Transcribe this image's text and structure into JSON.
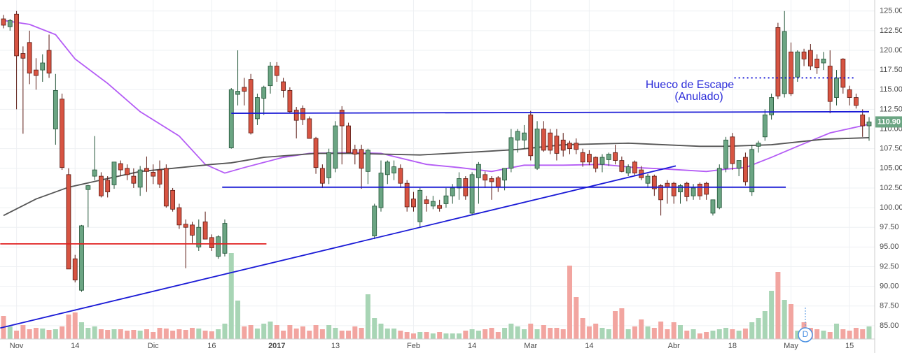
{
  "chart_data": {
    "type": "candlestick",
    "categories": [
      null,
      null,
      "Nov",
      null,
      null,
      null,
      null,
      null,
      null,
      null,
      null,
      "14",
      null,
      null,
      null,
      null,
      null,
      null,
      null,
      null,
      null,
      null,
      null,
      "Dic",
      null,
      null,
      null,
      null,
      null,
      null,
      null,
      null,
      "16",
      null,
      null,
      null,
      null,
      null,
      null,
      null,
      null,
      null,
      "2017",
      null,
      null,
      null,
      null,
      null,
      null,
      null,
      null,
      "13",
      null,
      null,
      null,
      null,
      null,
      null,
      null,
      null,
      null,
      null,
      null,
      "Feb",
      null,
      null,
      null,
      null,
      null,
      null,
      null,
      null,
      "14",
      null,
      null,
      null,
      null,
      null,
      null,
      null,
      null,
      "Mar",
      null,
      null,
      null,
      null,
      null,
      null,
      null,
      null,
      "14",
      null,
      null,
      null,
      null,
      null,
      null,
      null,
      null,
      null,
      null,
      null,
      null,
      "Abr",
      null,
      null,
      null,
      null,
      null,
      null,
      null,
      null,
      "18",
      null,
      null,
      null,
      null,
      null,
      null,
      null,
      null,
      "May",
      null,
      null,
      null,
      null,
      null,
      null,
      null,
      null,
      "15",
      null,
      null,
      null
    ],
    "open": [
      124,
      123,
      124.6,
      119.6,
      121,
      117.5,
      117.5,
      120,
      110,
      113.8,
      104.2,
      93.5,
      89.5,
      102.3,
      104,
      104,
      103.5,
      102.9,
      105.6,
      105,
      104,
      102.6,
      105,
      104.5,
      104.8,
      105,
      102.2,
      100,
      97.9,
      97.8,
      95,
      98.2,
      96.2,
      93.8,
      94.2,
      107.6,
      114.4,
      115.3,
      116.3,
      111.3,
      113.9,
      115.5,
      118,
      116,
      114.9,
      112.4,
      112.6,
      111.3,
      108.8,
      105,
      103.8,
      105,
      112.4,
      110.4,
      107.4,
      107.4,
      104.6,
      96.4,
      100,
      104.2,
      104.4,
      105,
      103.1,
      101.1,
      98.2,
      101,
      100.2,
      100.3,
      100.5,
      101.5,
      102.5,
      103.7,
      99.3,
      103.8,
      104.2,
      103.7,
      103.8,
      103.5,
      105,
      108.6,
      108.6,
      111.8,
      105,
      110,
      109.5,
      109.1,
      108.6,
      108.2,
      108.2,
      107,
      106.8,
      106.4,
      105.5,
      106.1,
      107,
      106,
      104.4,
      105.8,
      104.8,
      103.1,
      104,
      102.8,
      103.1,
      103.1,
      102,
      103.1,
      101.5,
      103,
      103.1,
      99.3,
      100,
      105,
      109,
      105,
      106.4,
      102,
      107.8,
      109,
      111.8,
      122.9,
      114.5,
      119.8,
      116.6,
      119.8,
      120,
      118.9,
      118.4,
      118,
      114,
      118.9,
      115,
      114,
      111.8,
      110.4
    ],
    "high": [
      124.5,
      124,
      125,
      120.5,
      122.5,
      119,
      119.5,
      122,
      117,
      114.5,
      105,
      94,
      97.8,
      102.9,
      109.1,
      104.5,
      104,
      105.8,
      106,
      105.5,
      105,
      105.3,
      106.5,
      105.5,
      106,
      105.5,
      102.5,
      100.5,
      98.5,
      98.2,
      98.5,
      99.5,
      96.6,
      96.5,
      98.5,
      115.2,
      120,
      116.5,
      117,
      114.5,
      115.5,
      118.5,
      118.5,
      116.5,
      115.3,
      112.8,
      113,
      111.6,
      109,
      105.5,
      107.5,
      111,
      112.9,
      110.8,
      108,
      108,
      107.5,
      100.5,
      106,
      106,
      106,
      105.5,
      103.5,
      102,
      102.5,
      101.5,
      101.5,
      101,
      102.5,
      103,
      104.5,
      104,
      104.5,
      105.8,
      104.6,
      104,
      104,
      105,
      110,
      110,
      110.5,
      112.3,
      111,
      111,
      110,
      110,
      109.5,
      108.5,
      108.8,
      107.5,
      107.3,
      106.5,
      106.8,
      107,
      108,
      106.5,
      105.5,
      106,
      105.3,
      104.3,
      104.2,
      103,
      103.5,
      103.3,
      103,
      103.3,
      103,
      103.2,
      103.3,
      101,
      105.5,
      109,
      109.5,
      106,
      107,
      108,
      108.5,
      112.5,
      114.5,
      123.5,
      125,
      121,
      120,
      120.2,
      120.8,
      119.5,
      119.8,
      120,
      117.5,
      119,
      115.5,
      114.5,
      112.5,
      111.5
    ],
    "low": [
      122.8,
      122.5,
      112.5,
      109.4,
      115.7,
      115,
      116,
      116.5,
      108,
      104.8,
      92.2,
      90.5,
      89.3,
      97.5,
      103.5,
      101.3,
      101.3,
      102.4,
      104,
      103.5,
      102.5,
      101.5,
      102,
      103,
      102.5,
      100,
      99.5,
      97.3,
      92.3,
      95.5,
      94.5,
      96,
      94.5,
      93.5,
      93.8,
      107.5,
      113,
      113,
      109.3,
      110.5,
      111.8,
      114.5,
      116,
      114,
      112,
      108.8,
      110.5,
      108.8,
      104.3,
      102.5,
      103,
      104.5,
      105.5,
      107,
      105.5,
      102.4,
      103,
      96,
      99.5,
      103,
      103.5,
      102.5,
      99.5,
      99.5,
      97.5,
      99.5,
      99.8,
      99.5,
      100,
      100.5,
      101,
      101,
      99,
      100.5,
      102.5,
      101,
      102,
      102.2,
      104.5,
      107,
      107.5,
      106,
      104.8,
      107.1,
      106.8,
      106,
      106.5,
      106.8,
      106.8,
      105.2,
      105.4,
      104.5,
      104.5,
      105.3,
      105.5,
      104.5,
      104,
      104,
      103.5,
      102.5,
      101.5,
      99,
      100.5,
      100.5,
      100.5,
      100.8,
      101,
      101,
      101,
      99,
      99.8,
      104.5,
      104.8,
      104,
      102.8,
      101.5,
      107,
      108.5,
      111.2,
      113.8,
      114,
      114.2,
      116,
      118,
      117.5,
      117,
      117.5,
      112,
      113,
      114.5,
      113,
      112.6,
      109,
      108.5
    ],
    "close": [
      123.2,
      123.8,
      119.3,
      119,
      117.1,
      116.8,
      118.4,
      117.1,
      114.9,
      105.1,
      92.2,
      90.8,
      97.7,
      102.8,
      104.8,
      101.5,
      102,
      105.8,
      104.8,
      104.2,
      103.1,
      104.8,
      104.6,
      104,
      103,
      100.2,
      99.8,
      97.8,
      97.5,
      96.5,
      97.5,
      96,
      94.9,
      96.3,
      98,
      115,
      114.8,
      114.8,
      109.5,
      114,
      115.3,
      118,
      116.8,
      114.9,
      112.2,
      111.1,
      111.2,
      108.8,
      105.1,
      103.1,
      107,
      110.4,
      110.4,
      107,
      106.8,
      105,
      107.3,
      100.2,
      104.4,
      105.8,
      105.2,
      103.1,
      100.1,
      100.1,
      102.2,
      100.5,
      100.8,
      99.9,
      101.5,
      102.5,
      103.7,
      101.5,
      104.2,
      105.5,
      103.5,
      103.3,
      102.6,
      105,
      108.9,
      109.7,
      109.5,
      106.6,
      110,
      107.3,
      107.3,
      106.9,
      107.3,
      107.5,
      107.4,
      105.8,
      105.8,
      105,
      106.4,
      106.8,
      106,
      104.6,
      105.2,
      104.4,
      103.8,
      104,
      102.4,
      101,
      102.6,
      101.5,
      102.8,
      101.4,
      102.5,
      101.5,
      101.7,
      101,
      105,
      108.6,
      105.6,
      106,
      103.3,
      107.4,
      108.2,
      111.8,
      114,
      114.2,
      122.4,
      114.5,
      119.8,
      118.9,
      118,
      117.8,
      118.9,
      113.5,
      116.5,
      115.3,
      114,
      113,
      110.4,
      110.9
    ],
    "volume": [
      33,
      18,
      12,
      20,
      14,
      16,
      15,
      13,
      14,
      18,
      35,
      38,
      24,
      16,
      18,
      14,
      13,
      14,
      14,
      12,
      13,
      12,
      14,
      10,
      16,
      15,
      12,
      14,
      13,
      16,
      15,
      12,
      11,
      14,
      22,
      123,
      55,
      18,
      20,
      15,
      22,
      25,
      20,
      12,
      20,
      15,
      18,
      12,
      20,
      14,
      20,
      16,
      12,
      12,
      18,
      16,
      64,
      30,
      22,
      15,
      15,
      12,
      10,
      8,
      10,
      10,
      8,
      10,
      8,
      8,
      8,
      12,
      14,
      12,
      14,
      16,
      10,
      16,
      22,
      18,
      14,
      22,
      14,
      20,
      16,
      16,
      14,
      105,
      60,
      30,
      18,
      22,
      16,
      14,
      40,
      44,
      14,
      18,
      28,
      18,
      16,
      25,
      14,
      24,
      20,
      12,
      14,
      8,
      10,
      12,
      14,
      16,
      14,
      12,
      15,
      24,
      30,
      40,
      69,
      96,
      56,
      50,
      12,
      24,
      16,
      14,
      12,
      10,
      22,
      14,
      12,
      16,
      14,
      18
    ],
    "up_color": "#6ba583",
    "down_color": "#d75442",
    "volume_up_color": "#a8d5b5",
    "volume_down_color": "#f2a5a0",
    "ylim": [
      83.3,
      126.4
    ],
    "vlim": [
      0,
      130
    ],
    "yticks": [
      {
        "value": 125,
        "label": "125.00"
      },
      {
        "value": 122.5,
        "label": "122.50"
      },
      {
        "value": 120,
        "label": "120.00"
      },
      {
        "value": 117.5,
        "label": "117.50"
      },
      {
        "value": 115,
        "label": "115.00"
      },
      {
        "value": 112.5,
        "label": "112.50"
      },
      {
        "value": 110,
        "label": "110.00"
      },
      {
        "value": 107.5,
        "label": "107.50"
      },
      {
        "value": 105,
        "label": "105.00"
      },
      {
        "value": 102.5,
        "label": "102.50"
      },
      {
        "value": 100,
        "label": "100.00"
      },
      {
        "value": 97.5,
        "label": "97.50"
      },
      {
        "value": 95,
        "label": "95.00"
      },
      {
        "value": 92.5,
        "label": "92.50"
      },
      {
        "value": 90,
        "label": "90.00"
      },
      {
        "value": 87.5,
        "label": "87.50"
      },
      {
        "value": 85,
        "label": "85.00"
      }
    ],
    "grid": true,
    "moving_averages": [
      {
        "color": "#b45cf5",
        "x": [
          0,
          4,
          8,
          11,
          16,
          21,
          27,
          31,
          34,
          37,
          43,
          47,
          54,
          58,
          65,
          70,
          75,
          80,
          86,
          92,
          97,
          102,
          108,
          111,
          114,
          118,
          122,
          127,
          133
        ],
        "values": [
          123.8,
          123.3,
          122,
          118.9,
          115.8,
          112.2,
          109.1,
          105.5,
          104.4,
          105.1,
          106.4,
          106.9,
          107,
          106.9,
          105.5,
          105.1,
          104.6,
          105.4,
          105.4,
          105.5,
          105.1,
          104.9,
          104.6,
          104.9,
          105.1,
          106.4,
          107.8,
          109.5,
          110.6
        ]
      },
      {
        "color": "#555555",
        "x": [
          0,
          5,
          10,
          16,
          21,
          26,
          32,
          35,
          40,
          48,
          53,
          64,
          73,
          79,
          86,
          96,
          107,
          111,
          118,
          126,
          133
        ],
        "values": [
          99,
          101.1,
          102.6,
          103.7,
          104.6,
          105,
          105.5,
          105.7,
          106.4,
          106.9,
          106.9,
          106.7,
          107.1,
          107.4,
          108,
          108.2,
          107.8,
          107.8,
          108,
          108.7,
          108.9
        ]
      }
    ],
    "lines": [
      {
        "color": "#1a1ad6",
        "x": [
          35,
          133
        ],
        "values": [
          112,
          112.2
        ]
      },
      {
        "color": "#1a1ad6",
        "x": [
          33.6,
          120.2
        ],
        "values": [
          102.6,
          102.6
        ]
      },
      {
        "color": "#1a1ad6",
        "x": [
          -0.5,
          103.3
        ],
        "values": [
          84.7,
          105.3
        ]
      },
      {
        "color": "#e02020",
        "x": [
          -0.5,
          40.4
        ],
        "values": [
          95.4,
          95.4
        ]
      },
      {
        "color": "#1a1ad6",
        "x": [
          112.3,
          130.6
        ],
        "values": [
          116.5,
          116.5
        ],
        "dashed": true
      }
    ],
    "price_tag": {
      "value": 110.9,
      "label": "110.90"
    },
    "annotations": [
      "Hueco de Escape",
      "(Anulado)"
    ],
    "event_marker": "D"
  }
}
